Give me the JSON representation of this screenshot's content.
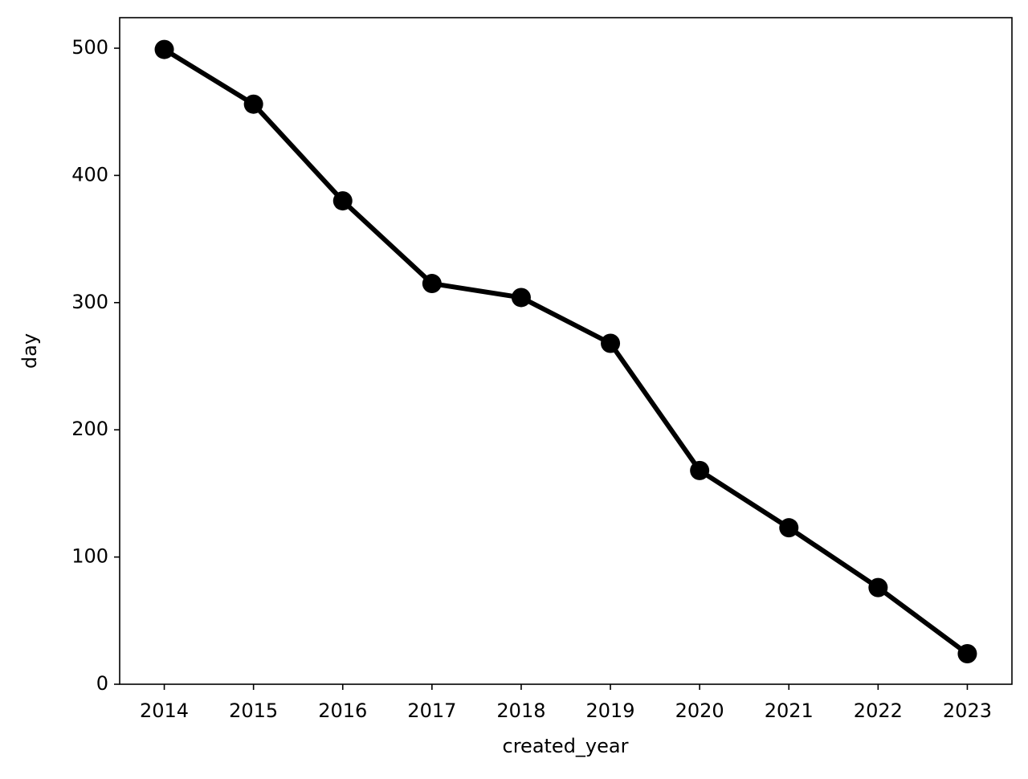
{
  "chart_data": {
    "type": "line",
    "x_label": "created_year",
    "y_label": "day",
    "categories": [
      "2014",
      "2015",
      "2016",
      "2017",
      "2018",
      "2019",
      "2020",
      "2021",
      "2022",
      "2023"
    ],
    "values": [
      499,
      456,
      380,
      315,
      304,
      268,
      168,
      123,
      76,
      24
    ],
    "color": "#000000",
    "markers": true,
    "ylim": [
      0,
      524
    ],
    "yticks": [
      0,
      100,
      200,
      300,
      400,
      500
    ],
    "grid": false
  }
}
